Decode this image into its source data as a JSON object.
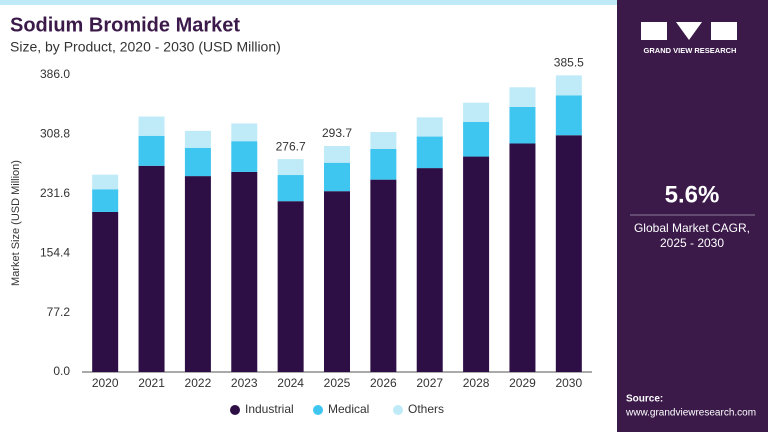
{
  "chart_data": {
    "type": "stacked-bar",
    "title": "Sodium Bromide Market",
    "subtitle": "Size, by Product, 2020 - 2030 (USD Million)",
    "y_label": "Market Size (USD Million)",
    "categories": [
      "2020",
      "2021",
      "2022",
      "2023",
      "2024",
      "2025",
      "2026",
      "2027",
      "2028",
      "2029",
      "2030"
    ],
    "series": [
      {
        "name": "Industrial",
        "color": "#2d0f45",
        "values": [
          208,
          268,
          254.6,
          260,
          222,
          235,
          250,
          265,
          280,
          297,
          307.7
        ]
      },
      {
        "name": "Medical",
        "color": "#3ec6f0",
        "values": [
          29.5,
          39,
          36.8,
          40,
          34,
          37,
          40,
          41,
          45,
          47.5,
          51.9
        ]
      },
      {
        "name": "Others",
        "color": "#bfeaf8",
        "values": [
          19,
          25,
          22,
          23,
          20.7,
          21.7,
          21.8,
          25,
          25,
          25.5,
          25.9
        ]
      }
    ],
    "total_labels": [
      null,
      null,
      null,
      null,
      "276.7",
      "293.7",
      null,
      null,
      null,
      null,
      "385.5"
    ],
    "ylim": [
      0,
      386
    ],
    "yticks": [
      {
        "value": 0,
        "label": "0.0"
      },
      77.2,
      154.4,
      231.6,
      308.8,
      {
        "value": 386,
        "label": "386.0"
      }
    ],
    "legend": "bottom"
  },
  "side_panel": {
    "brand": "GRAND VIEW RESEARCH",
    "cagr": "5.6%",
    "cagr_label_1": "Global Market CAGR,",
    "cagr_label_2": "2025 - 2030",
    "source_title": "Source:",
    "source_url": "www.grandviewresearch.com"
  }
}
